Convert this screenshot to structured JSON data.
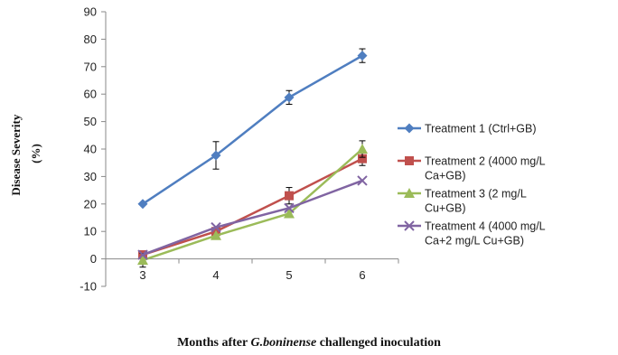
{
  "chart_data": {
    "type": "line",
    "x": [
      3,
      4,
      5,
      6
    ],
    "ylabel_line1": "Disease Severity",
    "ylabel_line2": "(%)",
    "xlabel_prefix": "Months after ",
    "xlabel_italic": "G.boninense",
    "xlabel_suffix": " challenged inoculation",
    "ylim": [
      -10,
      90
    ],
    "yticks": [
      -10,
      0,
      10,
      20,
      30,
      40,
      50,
      60,
      70,
      80,
      90
    ],
    "grid": false,
    "legend_position": "right",
    "series": [
      {
        "name_lines": [
          "Treatment 1 (Ctrl+GB)"
        ],
        "color": "#4f7ec0",
        "marker": "diamond",
        "values": [
          20,
          37.7,
          58.8,
          74
        ],
        "errors": [
          0,
          5,
          2.5,
          2.5
        ]
      },
      {
        "name_lines": [
          "Treatment 2 (4000 mg/L",
          "Ca+GB)"
        ],
        "color": "#c0504d",
        "marker": "square",
        "values": [
          1.5,
          10,
          23,
          36.5
        ],
        "errors": [
          0,
          0,
          3,
          2.5
        ]
      },
      {
        "name_lines": [
          "Treatment 3 (2 mg/L",
          "Cu+GB)"
        ],
        "color": "#9bbb59",
        "marker": "triangle",
        "values": [
          -0.5,
          8.5,
          16.5,
          40
        ],
        "errors": [
          2.5,
          0,
          0,
          3
        ]
      },
      {
        "name_lines": [
          "Treatment 4 (4000 mg/L",
          "Ca+2 mg/L Cu+GB)"
        ],
        "color": "#8064a2",
        "marker": "x",
        "values": [
          1.5,
          11.5,
          18.5,
          28.5
        ],
        "errors": [
          0,
          0,
          0,
          0
        ]
      }
    ]
  }
}
